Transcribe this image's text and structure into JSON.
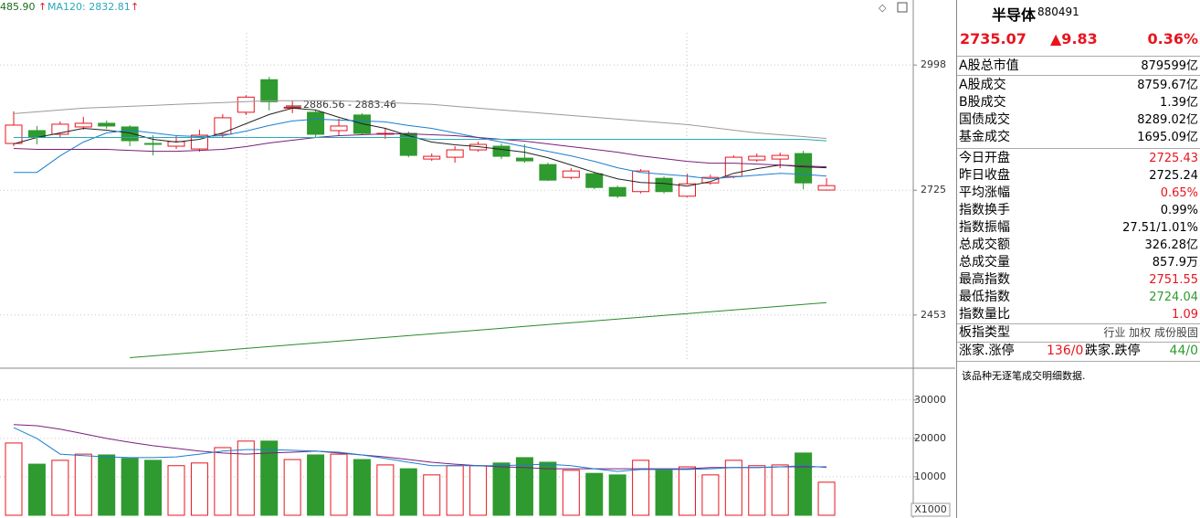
{
  "header": {
    "legend": [
      "485.90",
      "MA120: 2832.81"
    ],
    "legend_colors": [
      "#1f6b1f",
      "#28a8b8"
    ]
  },
  "chart_data": [
    {
      "type": "candlestick",
      "up_color": "#e8141e",
      "down_color": "#2f9a2f",
      "open": [
        2827,
        2855,
        2847,
        2863,
        2871,
        2863,
        2827,
        2821,
        2815,
        2847,
        2895,
        2966,
        2904,
        2895,
        2855,
        2889,
        2847,
        2849,
        2793,
        2797,
        2813,
        2821,
        2795,
        2781,
        2753,
        2761,
        2731,
        2722,
        2751,
        2712,
        2741,
        2755,
        2791,
        2793,
        2805,
        2725.43
      ],
      "high": [
        2897,
        2865,
        2875,
        2885,
        2877,
        2867,
        2845,
        2845,
        2857,
        2891,
        2932,
        2972,
        2920,
        2901,
        2881,
        2893,
        2861,
        2853,
        2805,
        2821,
        2831,
        2827,
        2825,
        2785,
        2773,
        2765,
        2735,
        2771,
        2755,
        2761,
        2759,
        2801,
        2805,
        2807,
        2811,
        2751.55
      ],
      "low": [
        2821,
        2825,
        2841,
        2857,
        2859,
        2821,
        2801,
        2815,
        2809,
        2841,
        2889,
        2899,
        2893,
        2841,
        2845,
        2845,
        2837,
        2797,
        2789,
        2785,
        2809,
        2793,
        2785,
        2745,
        2749,
        2727,
        2708,
        2718,
        2718,
        2710,
        2737,
        2751,
        2787,
        2773,
        2727,
        2724.04
      ],
      "close": [
        2867,
        2841,
        2869,
        2871,
        2865,
        2833,
        2825,
        2831,
        2845,
        2883,
        2928,
        2918,
        2906,
        2847,
        2865,
        2849,
        2849,
        2801,
        2799,
        2813,
        2825,
        2799,
        2789,
        2747,
        2767,
        2731,
        2712,
        2767,
        2722,
        2739,
        2753,
        2797,
        2799,
        2801,
        2741,
        2735.07
      ],
      "lines": [
        {
          "color": "#222222",
          "values": [
            2826,
            2840,
            2850,
            2860,
            2856,
            2850,
            2836,
            2830,
            2836,
            2850,
            2870,
            2890,
            2904,
            2900,
            2884,
            2870,
            2860,
            2844,
            2830,
            2824,
            2820,
            2814,
            2808,
            2796,
            2780,
            2764,
            2750,
            2742,
            2740,
            2734,
            2744,
            2762,
            2772,
            2780,
            2776,
            2774
          ]
        },
        {
          "color": "#1a7fd1",
          "values": [
            2764,
            2764,
            2800,
            2830,
            2850,
            2856,
            2850,
            2844,
            2842,
            2844,
            2854,
            2866,
            2876,
            2880,
            2878,
            2876,
            2874,
            2866,
            2860,
            2850,
            2840,
            2830,
            2820,
            2810,
            2800,
            2788,
            2774,
            2764,
            2760,
            2756,
            2750,
            2754,
            2758,
            2762,
            2760,
            2756
          ]
        },
        {
          "color": "#7a1f7a",
          "values": [
            2816,
            2814,
            2814,
            2814,
            2814,
            2812,
            2810,
            2810,
            2812,
            2814,
            2820,
            2828,
            2834,
            2840,
            2844,
            2846,
            2848,
            2848,
            2846,
            2844,
            2840,
            2836,
            2832,
            2826,
            2820,
            2814,
            2808,
            2800,
            2794,
            2788,
            2784,
            2784,
            2782,
            2780,
            2778,
            2776
          ]
        },
        {
          "color": "#9a9a9a",
          "values": [
            2892,
            2896,
            2900,
            2904,
            2906,
            2908,
            2910,
            2912,
            2914,
            2916,
            2918,
            2920,
            2920,
            2920,
            2920,
            2918,
            2916,
            2914,
            2912,
            2908,
            2904,
            2900,
            2896,
            2892,
            2888,
            2884,
            2880,
            2876,
            2872,
            2868,
            2862,
            2856,
            2850,
            2846,
            2842,
            2838
          ]
        },
        {
          "color": "#28a8b8",
          "values": [
            2840,
            2840,
            2840,
            2840,
            2840,
            2840,
            2840,
            2840,
            2840,
            2840,
            2840,
            2840,
            2840,
            2840,
            2840,
            2840,
            2840,
            2840,
            2836,
            2836,
            2836,
            2836,
            2836,
            2836,
            2836,
            2836,
            2836,
            2836,
            2836,
            2836,
            2836,
            2836,
            2836,
            2836,
            2836,
            2832.81
          ]
        },
        {
          "color": "#2a8a2a",
          "values": [
            null,
            null,
            null,
            null,
            null,
            2360,
            2364,
            2368,
            2372,
            2376,
            2380,
            2384,
            2388,
            2392,
            2396,
            2400,
            2404,
            2408,
            2412,
            2416,
            2420,
            2424,
            2428,
            2432,
            2436,
            2440,
            2444,
            2448,
            2452,
            2456,
            2460,
            2464,
            2468,
            2472,
            2476,
            2480
          ]
        }
      ],
      "annotation": "2886.56 - 2883.46",
      "ylim": [
        2353,
        3080
      ],
      "yticks": [
        2453,
        2725,
        2998
      ],
      "grid": true
    },
    {
      "type": "bar",
      "up_color": "#e8141e",
      "down_color": "#2f9a2f",
      "values": [
        18800,
        13300,
        14300,
        15900,
        15700,
        14800,
        14300,
        12900,
        13600,
        17600,
        19300,
        19300,
        14500,
        15700,
        15900,
        14500,
        13100,
        12100,
        10500,
        12900,
        12900,
        13600,
        15000,
        13800,
        11700,
        10900,
        10500,
        14300,
        11700,
        12600,
        10500,
        14300,
        12900,
        13100,
        16200,
        8600
      ],
      "lines": [
        {
          "color": "#7a1f7a",
          "values": [
            23600,
            23300,
            22400,
            21200,
            20000,
            19000,
            18100,
            17400,
            16700,
            16200,
            15900,
            16200,
            16400,
            16700,
            16200,
            15700,
            15200,
            14500,
            13800,
            13300,
            12900,
            12600,
            12400,
            12100,
            12100,
            12100,
            12100,
            12100,
            12100,
            12100,
            12400,
            12400,
            12400,
            12600,
            12600,
            12600
          ]
        },
        {
          "color": "#1a7fd1",
          "values": [
            22800,
            20000,
            15900,
            15500,
            15200,
            15000,
            15000,
            15200,
            15900,
            16700,
            17100,
            17100,
            16900,
            16700,
            16400,
            15700,
            14800,
            13800,
            12900,
            12900,
            12900,
            12900,
            13100,
            13300,
            12900,
            12100,
            11400,
            11900,
            11900,
            11900,
            12100,
            12400,
            12400,
            12600,
            12900,
            12400
          ]
        }
      ],
      "unit_label": "X1000",
      "ylim": [
        0,
        37800
      ],
      "yticks": [
        10000,
        20000,
        30000
      ],
      "grid": true
    }
  ],
  "panel": {
    "title": "半导体",
    "code": "880491",
    "price": "2735.07",
    "change": "▲9.83",
    "percent": "0.36%",
    "rows": [
      {
        "label": "A股总市值",
        "value": "879599亿",
        "color": "#000000"
      },
      {
        "label": "A股成交",
        "value": "8759.67亿",
        "color": "#000000"
      },
      {
        "label": "B股成交",
        "value": "1.39亿",
        "color": "#000000"
      },
      {
        "label": "国债成交",
        "value": "8289.02亿",
        "color": "#000000"
      },
      {
        "label": "基金成交",
        "value": "1695.09亿",
        "color": "#000000"
      },
      {
        "label": "今日开盘",
        "value": "2725.43",
        "color": "#e8141e"
      },
      {
        "label": "昨日收盘",
        "value": "2725.24",
        "color": "#000000"
      },
      {
        "label": "平均涨幅",
        "value": "0.65%",
        "color": "#e8141e"
      },
      {
        "label": "指数换手",
        "value": "0.99%",
        "color": "#000000"
      },
      {
        "label": "指数振幅",
        "value": "27.51/1.01%",
        "color": "#000000"
      },
      {
        "label": "总成交额",
        "value": "326.28亿",
        "color": "#000000"
      },
      {
        "label": "总成交量",
        "value": "857.9万",
        "color": "#000000"
      },
      {
        "label": "最高指数",
        "value": "2751.55",
        "color": "#e8141e"
      },
      {
        "label": "最低指数",
        "value": "2724.04",
        "color": "#2f9a2f"
      },
      {
        "label": "指数量比",
        "value": "1.09",
        "color": "#e8141e"
      },
      {
        "label": "板指类型",
        "value": "行业 加权 成份股固",
        "color": "#000000"
      }
    ],
    "breadth": {
      "up_label": "涨家.涨停",
      "up_value": "136/0",
      "down_label": "跌家.跌停",
      "down_value": "44/0"
    },
    "note": "该品种无逐笔成交明细数据."
  }
}
